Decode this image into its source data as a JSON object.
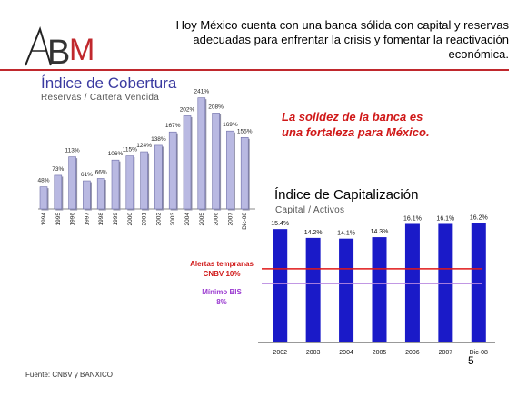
{
  "logo": {
    "text": "ABM"
  },
  "header": {
    "text": "Hoy México cuenta con una banca sólida con capital y reservas adecuadas para enfrentar la crisis y fomentar la reactivación económica."
  },
  "tagline": {
    "line1": "La solidez de la banca es",
    "line2": "una fortaleza para México."
  },
  "source": "Fuente: CNBV y BANXICO",
  "page_number": "5",
  "colors": {
    "rule": "#c0282d",
    "bars1": "#b9b9e2",
    "bars2": "#1a1ac8",
    "alert": "#e01818",
    "bis": "#b88ae0"
  },
  "chart_data": [
    {
      "type": "bar",
      "title": "Índice de Cobertura",
      "subtitle": "Reservas / Cartera Vencida",
      "categories": [
        "1994",
        "1995",
        "1996",
        "1997",
        "1998",
        "1999",
        "2000",
        "2001",
        "2002",
        "2003",
        "2004",
        "2005",
        "2006",
        "2007",
        "Dic-08"
      ],
      "values": [
        48,
        73,
        113,
        61,
        66,
        106,
        115,
        124,
        138,
        167,
        202,
        241,
        208,
        169,
        155
      ],
      "data_labels": [
        "48%",
        "73%",
        "113%",
        "61%",
        "66%",
        "106%",
        "115%",
        "124%",
        "138%",
        "167%",
        "202%",
        "241%",
        "208%",
        "169%",
        "155%"
      ],
      "ylim": [
        0,
        260
      ],
      "grid": false
    },
    {
      "type": "bar",
      "title": "Índice de Capitalización",
      "subtitle": "Capital / Activos",
      "categories": [
        "2002",
        "2003",
        "2004",
        "2005",
        "2006",
        "2007",
        "Dic-08"
      ],
      "values": [
        15.4,
        14.2,
        14.1,
        14.3,
        16.1,
        16.1,
        16.2
      ],
      "data_labels": [
        "15.4%",
        "14.2%",
        "14.1%",
        "14.3%",
        "16.1%",
        "16.1%",
        "16.2%"
      ],
      "ylim": [
        0,
        16.9
      ],
      "reference_lines": [
        {
          "label": "Alertas tempranas CNBV 10%",
          "label_line1": "Alertas tempranas",
          "label_line2": "CNBV 10%",
          "value": 10
        },
        {
          "label": "Mínimo BIS 8%",
          "label_line1": "Mínimo BIS",
          "label_line2": "8%",
          "value": 8
        }
      ],
      "grid": false
    }
  ]
}
